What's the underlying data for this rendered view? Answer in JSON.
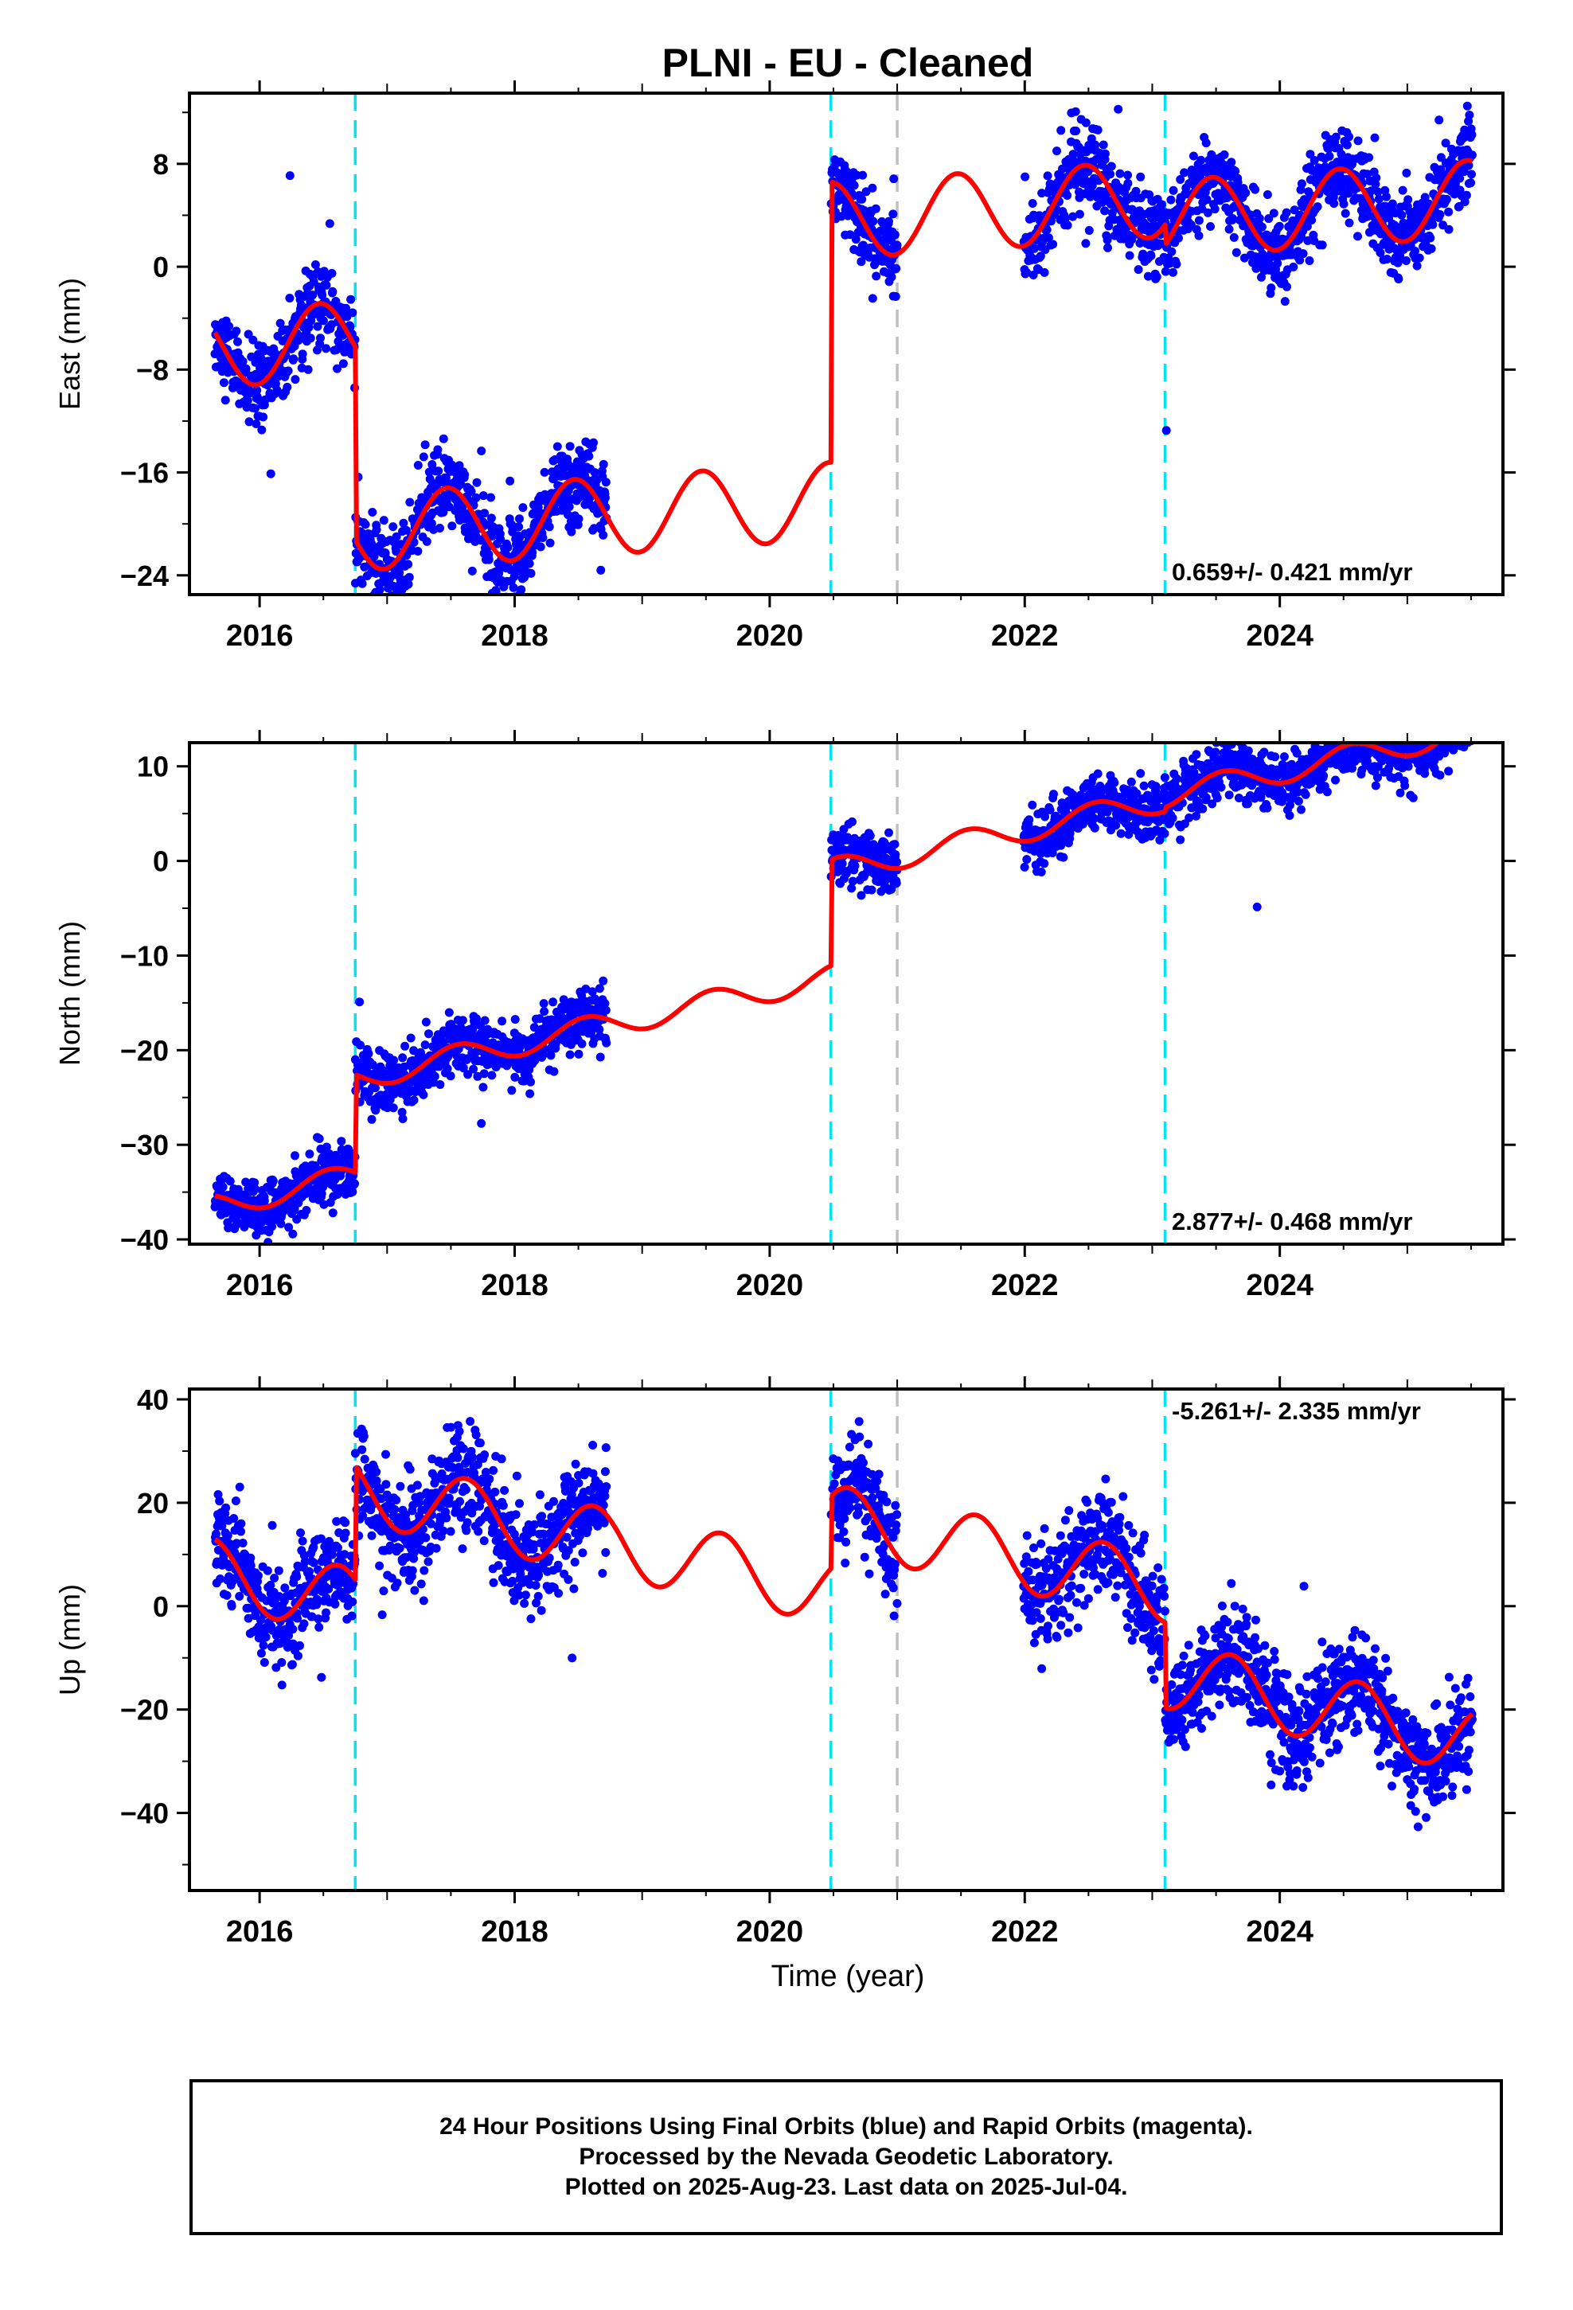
{
  "chart_data": {
    "type": "scatter",
    "title": "PLNI  - EU - Cleaned",
    "xlabel": "Time (year)",
    "xlim": [
      2015.45,
      2025.75
    ],
    "x_ticks": [
      "2016",
      "2018",
      "2020",
      "2022",
      "2024"
    ],
    "offset_lines_cyan": [
      2016.75,
      2020.48,
      2023.1
    ],
    "offset_lines_gray": [
      2021.0
    ],
    "data_gaps": [
      [
        2018.72,
        2020.48
      ],
      [
        2021.0,
        2021.99
      ]
    ],
    "data_range": [
      2015.65,
      2025.51
    ],
    "legend": "none",
    "panels": [
      {
        "ylabel": "East (mm)",
        "ylim": [
          -25.5,
          13.5
        ],
        "y_ticks": [
          -24,
          -16,
          -8,
          0,
          8
        ],
        "rate_label": "0.659+/- 0.421 mm/yr",
        "rate_position": "bottom-right",
        "series": [
          {
            "color": "#0000ff",
            "style": "points",
            "noise_mm": 1.6
          },
          {
            "color": "#ff0000",
            "style": "line",
            "model": {
              "segments": [
                {
                  "from": 2015.65,
                  "to": 2016.75,
                  "offset_mm": -3.2
                },
                {
                  "from": 2016.75,
                  "to": 2020.48,
                  "offset_mm": -18.2
                },
                {
                  "from": 2020.48,
                  "to": 2023.1,
                  "offset_mm": 3.6
                },
                {
                  "from": 2023.1,
                  "to": 2025.51,
                  "offset_mm": 2.0
                }
              ],
              "trend_mm_per_yr": 0.659,
              "annual_amplitude_mm": 3.0,
              "annual_peak_month_fraction": 0.47
            }
          }
        ]
      },
      {
        "ylabel": "North (mm)",
        "ylim": [
          -40.5,
          12.5
        ],
        "y_ticks": [
          -40,
          -30,
          -20,
          -10,
          0,
          10
        ],
        "rate_label": "2.877+/- 0.468 mm/yr",
        "rate_position": "bottom-right",
        "series": [
          {
            "color": "#0000ff",
            "style": "points",
            "noise_mm": 1.5
          },
          {
            "color": "#ff0000",
            "style": "line",
            "model": {
              "segments": [
                {
                  "from": 2015.65,
                  "to": 2016.75,
                  "offset_mm": -22.5
                },
                {
                  "from": 2016.75,
                  "to": 2020.48,
                  "offset_mm": -12.2
                },
                {
                  "from": 2020.48,
                  "to": 2023.1,
                  "offset_mm": -1.0
                },
                {
                  "from": 2023.1,
                  "to": 2025.51,
                  "offset_mm": -0.6
                }
              ],
              "trend_mm_per_yr": 2.877,
              "annual_amplitude_mm": 1.3,
              "annual_peak_month_fraction": 0.55
            }
          }
        ]
      },
      {
        "ylabel": "Up (mm)",
        "ylim": [
          -55,
          42
        ],
        "y_ticks": [
          -40,
          -20,
          0,
          20,
          40
        ],
        "rate_label": "-5.261+/- 2.335 mm/yr",
        "rate_position": "top-right",
        "series": [
          {
            "color": "#0000ff",
            "style": "points",
            "noise_mm": 5.0
          },
          {
            "color": "#ff0000",
            "style": "line",
            "model": {
              "segments": [
                {
                  "from": 2015.65,
                  "to": 2016.75,
                  "offset_mm": -19.0
                },
                {
                  "from": 2016.75,
                  "to": 2020.48,
                  "offset_mm": 3.0
                },
                {
                  "from": 2020.48,
                  "to": 2023.1,
                  "offset_mm": 17.0
                },
                {
                  "from": 2023.1,
                  "to": 2025.51,
                  "offset_mm": 0.5
                }
              ],
              "trend_mm_per_yr": -5.261,
              "annual_amplitude_mm": 6.5,
              "annual_peak_month_fraction": 0.62
            }
          }
        ]
      }
    ]
  },
  "footer": {
    "line1": "24 Hour Positions Using Final Orbits (blue) and Rapid Orbits (magenta).",
    "line2": "Processed by the Nevada Geodetic Laboratory.",
    "line3": "Plotted on 2025-Aug-23. Last data on 2025-Jul-04."
  }
}
